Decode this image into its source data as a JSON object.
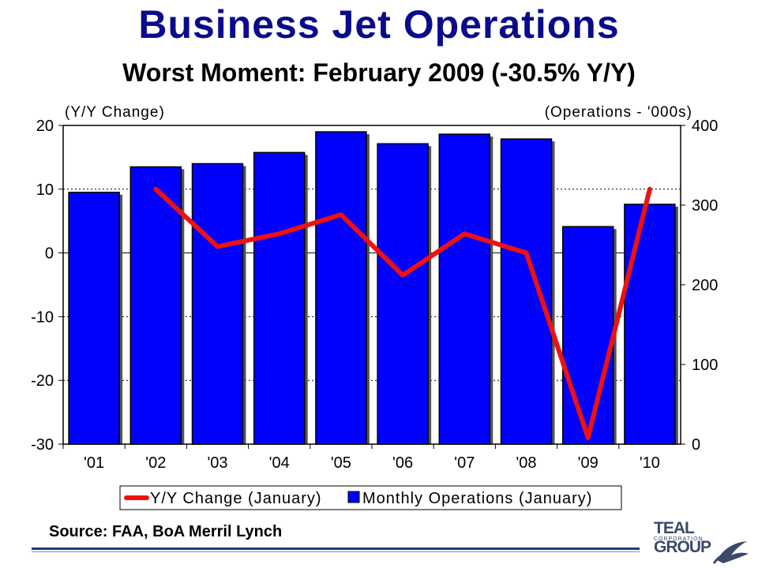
{
  "title": "Business Jet Operations",
  "subtitle": "Worst Moment: February 2009 (-30.5% Y/Y)",
  "source": "Source: FAA, BoA Merril Lynch",
  "logo": {
    "name": "TEAL GROUP",
    "sub": "CORPORATION"
  },
  "colors": {
    "bar": "#0000ff",
    "bar_border": "#000000",
    "line": "#ee1111",
    "title": "#0a0a8c"
  },
  "chart_data": {
    "type": "bar",
    "categories": [
      "'01",
      "'02",
      "'03",
      "'04",
      "'05",
      "'06",
      "'07",
      "'08",
      "'09",
      "'10"
    ],
    "left_axis_label": "(Y/Y Change)",
    "right_axis_label": "(Operations - '000s)",
    "left_ylim": [
      -30,
      20
    ],
    "right_ylim": [
      0,
      400
    ],
    "left_ticks": [
      "20",
      "10",
      "0",
      "-10",
      "-20",
      "-30"
    ],
    "right_ticks": [
      "400",
      "300",
      "200",
      "100",
      "0"
    ],
    "grid": "dotted horizontal",
    "legend_position": "bottom",
    "series": [
      {
        "name": "Y/Y Change (January)",
        "type": "line",
        "axis": "left",
        "values": [
          null,
          10,
          1,
          3,
          6,
          -3.5,
          3,
          0,
          -29,
          10
        ]
      },
      {
        "name": "Monthly Operations (January)",
        "type": "bar",
        "axis": "right",
        "values": [
          316,
          348,
          352,
          366,
          392,
          377,
          389,
          383,
          273,
          301
        ]
      }
    ]
  }
}
